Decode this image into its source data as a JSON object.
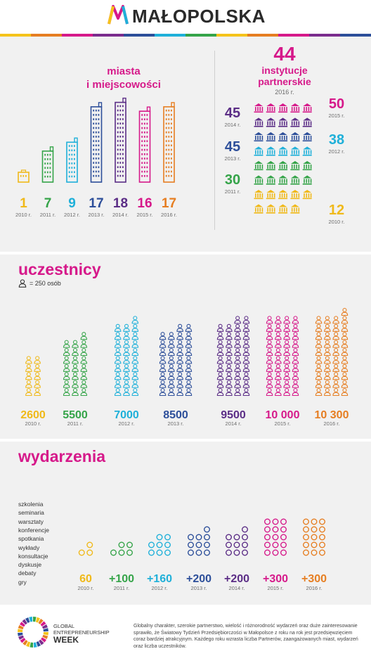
{
  "brand": {
    "name": "MAŁOPOLSKA",
    "stripe_colors": [
      "#f5c31b",
      "#e67e22",
      "#d6198a",
      "#7b2d8e",
      "#2d4f9a",
      "#1fb0d9",
      "#35a449",
      "#f5c31b",
      "#e67e22",
      "#d6198a",
      "#7b2d8e",
      "#2d4f9a"
    ]
  },
  "colors": {
    "2010": "#f0b919",
    "2011": "#35a449",
    "2012": "#1fb0d9",
    "2013": "#2d4f9a",
    "2014": "#5b2d86",
    "2015": "#d6198a",
    "2016": "#e67e22"
  },
  "chart_data": [
    {
      "type": "bar",
      "title": "miasta i miejscowości",
      "title_lines": [
        "miasta",
        "i miejscowości"
      ],
      "categories": [
        "2010 r.",
        "2011 r.",
        "2012 r.",
        "2013 r.",
        "2014 r.",
        "2015 r.",
        "2016 r."
      ],
      "values": [
        1,
        7,
        9,
        17,
        18,
        16,
        17
      ]
    },
    {
      "type": "bar",
      "title": "44 instytucje partnerskie 2016 r.",
      "headline": {
        "value": "44",
        "label_lines": [
          "instytucje",
          "partnerskie"
        ],
        "year": "2016 r."
      },
      "left_labels": [
        {
          "value": "45",
          "year": "2014 r."
        },
        {
          "value": "45",
          "year": "2013 r."
        },
        {
          "value": "30",
          "year": "2011 r."
        }
      ],
      "right_labels": [
        {
          "value": "50",
          "year": "2015 r."
        },
        {
          "value": "38",
          "year": "2012 r."
        },
        {
          "value": "12",
          "year": "2010 r."
        }
      ],
      "categories": [
        "2010 r.",
        "2011 r.",
        "2012 r.",
        "2013 r.",
        "2014 r.",
        "2015 r.",
        "2016 r."
      ],
      "values": [
        12,
        30,
        38,
        45,
        45,
        50,
        44
      ]
    },
    {
      "type": "bar",
      "title": "uczestnicy",
      "legend": "= 250 osób",
      "unit_per_icon": 250,
      "categories": [
        "2010 r.",
        "2011 r.",
        "2012 r.",
        "2013 r.",
        "2014 r.",
        "2015 r.",
        "2016 r."
      ],
      "value_labels": [
        "2600",
        "5500",
        "7000",
        "8500",
        "9500",
        "10 000",
        "10 300"
      ],
      "values": [
        2600,
        5500,
        7000,
        8500,
        9500,
        10000,
        10300
      ]
    },
    {
      "type": "bar",
      "title": "wydarzenia",
      "categories_list": [
        "szkolenia",
        "seminaria",
        "warsztaty",
        "konferencje",
        "spotkania",
        "wykłady",
        "konsultacje",
        "dyskusje",
        "debaty",
        "gry"
      ],
      "categories": [
        "2010 r.",
        "2011 r.",
        "2012 r.",
        "2013 r.",
        "2014 r.",
        "2015 r.",
        "2016 r."
      ],
      "value_labels": [
        "60",
        "+100",
        "+160",
        "+200",
        "+200",
        "+300",
        "+300"
      ],
      "values": [
        60,
        100,
        160,
        200,
        200,
        300,
        300
      ]
    }
  ],
  "footer": {
    "logo_lines": [
      "GLOBAL",
      "ENTREPRENEURSHIP",
      "WEEK"
    ],
    "text": "Globalny charakter, szerokie partnerstwo, wielość i różnorodność wydarzeń oraz duże zainteresowanie sprawiło, że Światowy Tydzień Przedsiębiorczości w Małopolsce z roku na rok jest przedsięwzięciem coraz bardziej atrakcyjnym. Każdego roku wzrasta liczba Partnerów, zaangażowanych miast, wydarzeń oraz liczba uczestników."
  }
}
